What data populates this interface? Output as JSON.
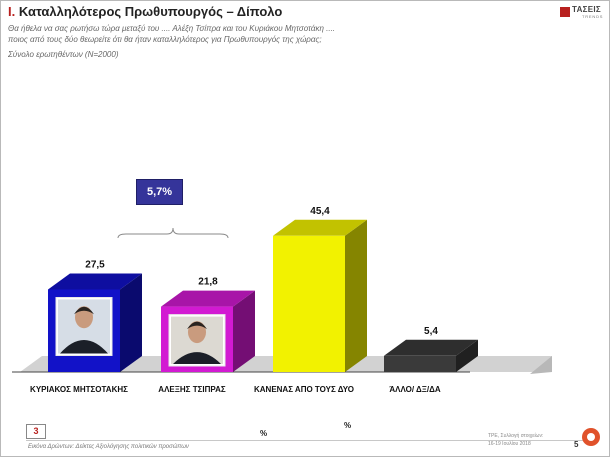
{
  "header": {
    "section_number": "Ι.",
    "title": "Καταλληλότερος Πρωθυπουργός – Δίπολο",
    "question_line1": "Θα ήθελα να σας ρωτήσω τώρα μεταξύ του .... Αλέξη Τσίπρα και του Κυριάκου Μητσοτάκη ....",
    "question_line2": "ποιος από τους δύο θεωρείτε ότι θα ήταν καταλληλότερος για Πρωθυπουργός της χώρας;",
    "base": "Σύνολο ερωτηθέντων (Ν=2000)"
  },
  "logo": {
    "name": "ΤΑΣΕΙΣ",
    "sub": "TRENDS"
  },
  "difference_badge": "5,7%",
  "chart_data": {
    "type": "bar",
    "style": "3d",
    "title": "Καταλληλότερος Πρωθυπουργός – Δίπολο",
    "categories": [
      "ΚΥΡΙΑΚΟΣ ΜΗΤΣΟΤΑΚΗΣ",
      "ΑΛΕΞΗΣ ΤΣΙΠΡΑΣ",
      "ΚΑΝΕΝΑΣ ΑΠΟ ΤΟΥΣ ΔΥΟ",
      "ΆΛΛΟ/ ΔΞ/ΔΑ"
    ],
    "values": [
      27.5,
      21.8,
      45.4,
      5.4
    ],
    "value_labels": [
      "27,5",
      "21,8",
      "45,4",
      "5,4"
    ],
    "colors": [
      "#1212c8",
      "#d21ad2",
      "#f2f200",
      "#3a3a3a"
    ],
    "unit": "%",
    "xlabel": "",
    "ylabel": "",
    "ylim": [
      0,
      50
    ]
  },
  "axis_units": [
    "%",
    "%"
  ],
  "footer": {
    "page_box": "3",
    "source": "Εικόνα Δρώντων: Δείκτες Αξιολόγησης πολιτικών προσώπων",
    "meta_line1": "ΤΡΕ, Συλλογή στοιχείων:",
    "meta_line2": "16-19 Ιουλίου 2018",
    "page": "5"
  }
}
